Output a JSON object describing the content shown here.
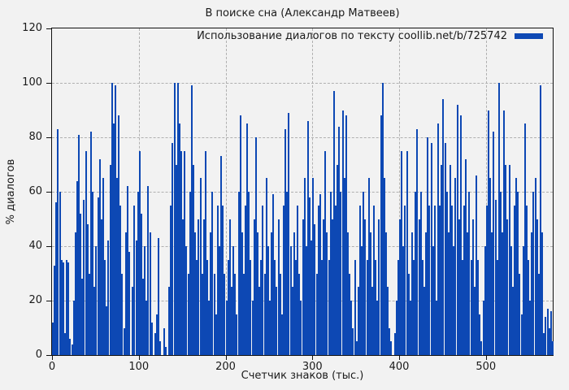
{
  "title": "В поиске сна (Александр Матвеев)",
  "legend": {
    "label": "Использование диалогов по тексту coollib.net/b/725742",
    "swatch": "blue-bar-sample"
  },
  "colors": {
    "bar": "#0d48b4",
    "grid": "#b0b0b0",
    "axis": "#111111",
    "background": "#f2f2f2"
  },
  "chart_data": {
    "type": "bar",
    "title": "В поиске сна (Александр Матвеев)",
    "xlabel": "Счетчик знаков (тыс.)",
    "ylabel": "% диалогов",
    "legend_label": "Использование диалогов по тексту coollib.net/b/725742",
    "legend_position": "top-right",
    "grid": true,
    "xlim": [
      0,
      577
    ],
    "ylim": [
      0,
      120
    ],
    "xticks": [
      0,
      100,
      200,
      300,
      400,
      500
    ],
    "yticks": [
      0,
      20,
      40,
      60,
      80,
      100,
      120
    ],
    "x_start": 0,
    "x_step": 2,
    "values": [
      12,
      33,
      56,
      83,
      60,
      35,
      34,
      8,
      35,
      34,
      6,
      4,
      20,
      45,
      64,
      81,
      52,
      28,
      57,
      75,
      48,
      30,
      82,
      60,
      25,
      40,
      58,
      72,
      50,
      65,
      35,
      18,
      42,
      70,
      100,
      85,
      99,
      65,
      88,
      55,
      30,
      10,
      45,
      62,
      38,
      0,
      25,
      55,
      42,
      60,
      75,
      52,
      28,
      40,
      20,
      62,
      45,
      12,
      0,
      8,
      15,
      43,
      5,
      0,
      10,
      3,
      0,
      25,
      55,
      78,
      100,
      70,
      100,
      85,
      75,
      50,
      75,
      40,
      30,
      60,
      99,
      70,
      45,
      35,
      50,
      65,
      30,
      50,
      75,
      35,
      20,
      45,
      60,
      30,
      15,
      55,
      40,
      73,
      55,
      30,
      20,
      35,
      50,
      25,
      40,
      30,
      15,
      60,
      88,
      45,
      30,
      55,
      85,
      60,
      35,
      20,
      50,
      80,
      45,
      25,
      35,
      55,
      30,
      65,
      40,
      20,
      45,
      59,
      35,
      25,
      50,
      30,
      15,
      55,
      83,
      60,
      89,
      40,
      25,
      45,
      35,
      55,
      30,
      20,
      50,
      65,
      40,
      86,
      58,
      42,
      65,
      48,
      30,
      55,
      59,
      35,
      50,
      75,
      45,
      35,
      60,
      50,
      97,
      55,
      70,
      84,
      60,
      90,
      65,
      88,
      45,
      30,
      20,
      10,
      35,
      5,
      25,
      55,
      40,
      60,
      50,
      35,
      65,
      45,
      25,
      55,
      35,
      20,
      50,
      88,
      100,
      65,
      45,
      25,
      10,
      5,
      0,
      8,
      20,
      35,
      50,
      75,
      40,
      55,
      75,
      30,
      20,
      45,
      35,
      60,
      83,
      50,
      60,
      35,
      25,
      45,
      80,
      55,
      78,
      40,
      55,
      20,
      85,
      55,
      70,
      94,
      78,
      60,
      45,
      70,
      55,
      40,
      65,
      92,
      50,
      88,
      35,
      55,
      72,
      45,
      60,
      35,
      50,
      25,
      66,
      35,
      15,
      5,
      20,
      40,
      55,
      90,
      65,
      45,
      82,
      57,
      35,
      100,
      60,
      45,
      90,
      70,
      50,
      70,
      40,
      25,
      55,
      65,
      60,
      30,
      15,
      40,
      85,
      55,
      35,
      20,
      45,
      60,
      65,
      50,
      30,
      99,
      45,
      8,
      14,
      17,
      10,
      16,
      5
    ]
  }
}
